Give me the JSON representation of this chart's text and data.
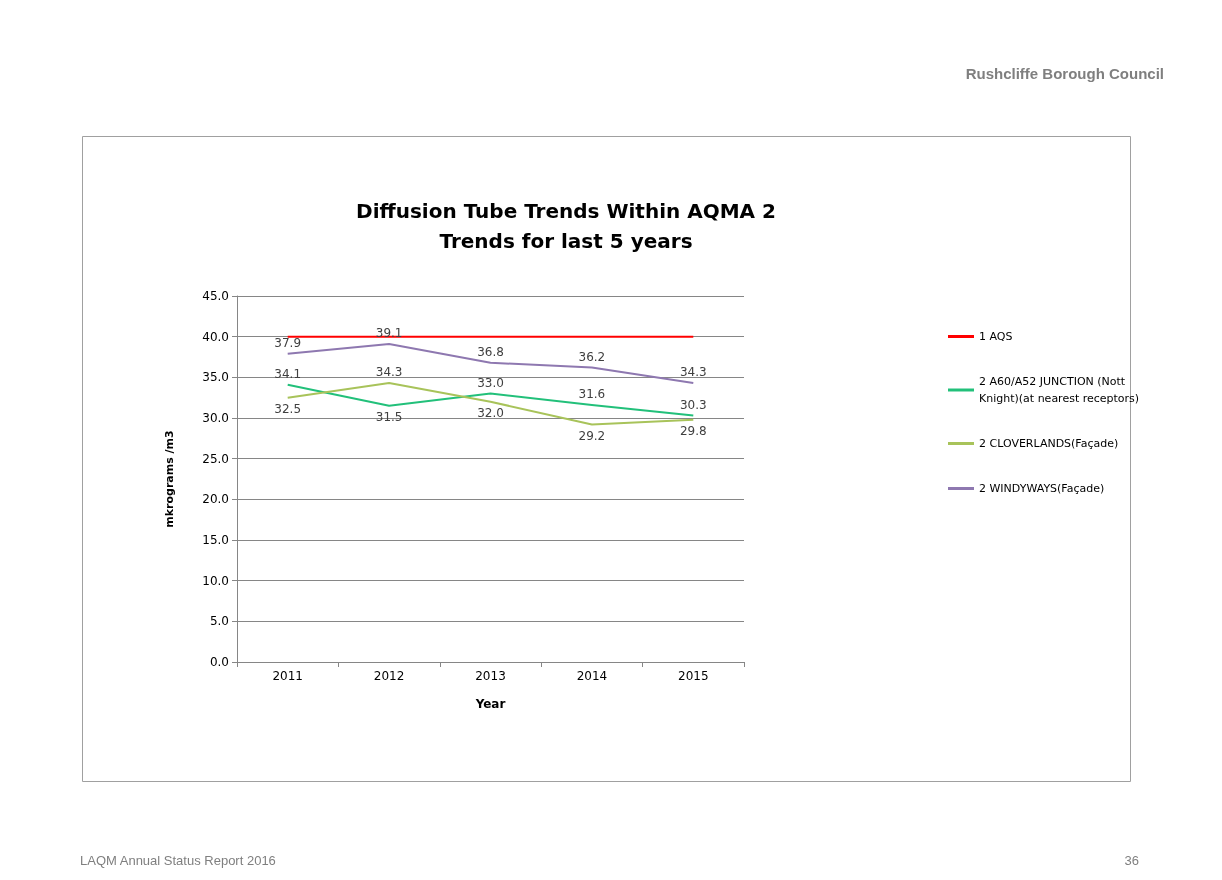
{
  "chart_data": {
    "type": "line",
    "title": "Diffusion Tube Trends Within AQMA 2",
    "subtitle": "Trends for last 5 years",
    "xlabel": "Year",
    "ylabel": "mkrograms /m3",
    "categories": [
      "2011",
      "2012",
      "2013",
      "2014",
      "2015"
    ],
    "ylim": [
      0,
      45
    ],
    "yticks": [
      {
        "value": 0,
        "label": "0.0"
      },
      {
        "value": 5,
        "label": "5.0"
      },
      {
        "value": 10,
        "label": "10.0"
      },
      {
        "value": 15,
        "label": "15.0"
      },
      {
        "value": 20,
        "label": "20.0"
      },
      {
        "value": 25,
        "label": "25.0"
      },
      {
        "value": 30,
        "label": "30.0"
      },
      {
        "value": 35,
        "label": "35.0"
      },
      {
        "value": 40,
        "label": "40.0"
      },
      {
        "value": 45,
        "label": "45.0"
      }
    ],
    "grid": "y",
    "legend": "right",
    "marker": "none",
    "line_style": "solid",
    "series": [
      {
        "name": "1 AQS",
        "color": "#ff0000",
        "values": [
          40,
          40,
          40,
          40,
          40
        ]
      },
      {
        "name": "2 A60/A52 JUNCTION (Nott Knight)(at nearest receptors)",
        "color": "#22c07a",
        "values": [
          34.1,
          31.5,
          33.0,
          31.6,
          30.3
        ],
        "value_labels": [
          "34.1",
          "31.5",
          "33.0",
          "31.6",
          "30.3"
        ]
      },
      {
        "name": "2 CLOVERLANDS(Façade)",
        "color": "#a8c35a",
        "values": [
          32.5,
          34.3,
          32.0,
          29.2,
          29.8
        ],
        "value_labels": [
          "32.5",
          "34.3",
          "32.0",
          "29.2",
          "29.8"
        ]
      },
      {
        "name": "2 WINDYWAYS(Façade)",
        "color": "#8e78b0",
        "values": [
          37.9,
          39.1,
          36.8,
          36.2,
          34.3
        ],
        "value_labels": [
          "37.9",
          "39.1",
          "36.8",
          "36.2",
          "34.3"
        ]
      }
    ],
    "annotations": [
      "Rushcliffe Borough Council",
      "LAQM Annual Status Report 2016",
      "36"
    ]
  }
}
